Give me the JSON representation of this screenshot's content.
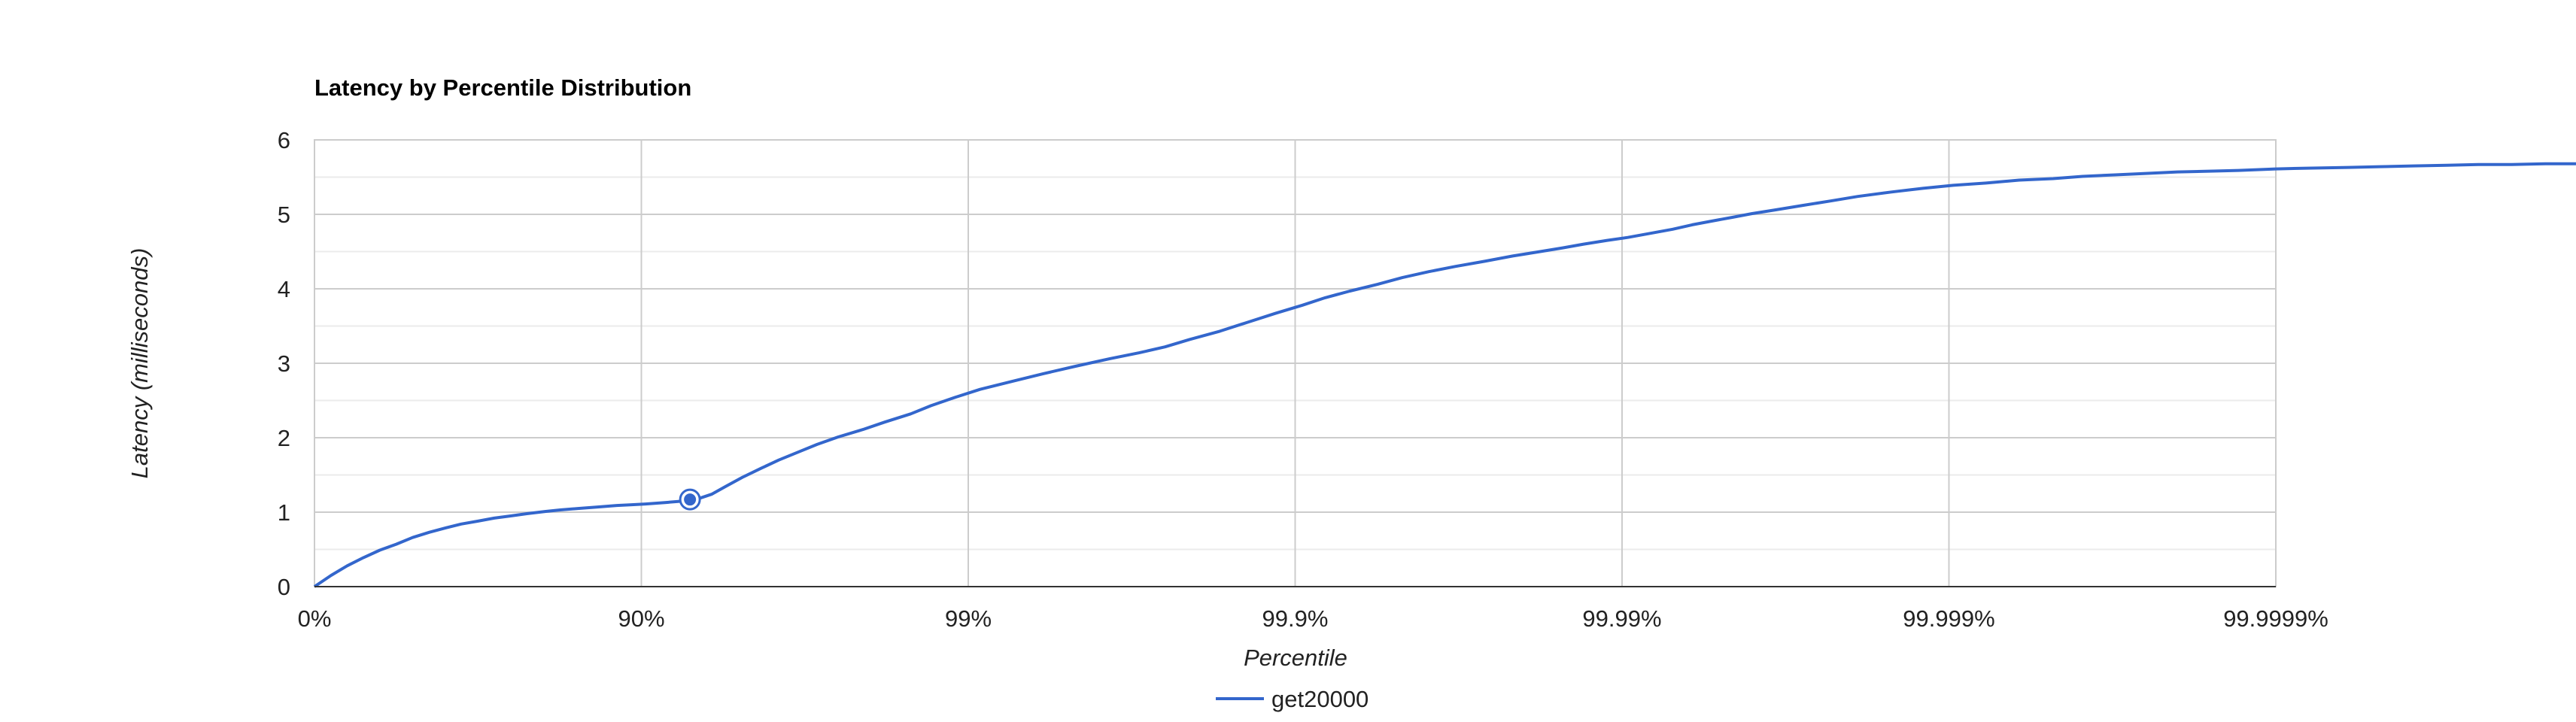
{
  "chart_data": {
    "type": "line",
    "title": "Latency by Percentile Distribution",
    "xlabel": "Percentile",
    "ylabel": "Latency (milliseconds)",
    "x_scale": "log-inverse-percentile",
    "x_ticks": [
      "0%",
      "90%",
      "99%",
      "99.9%",
      "99.99%",
      "99.999%",
      "99.9999%"
    ],
    "y_ticks": [
      "0",
      "1",
      "2",
      "3",
      "4",
      "5",
      "6"
    ],
    "ylim": [
      0,
      6
    ],
    "grid": true,
    "legend_position": "bottom",
    "highlighted_point": {
      "percentile": 92.9,
      "latency": 1.17
    },
    "series": [
      {
        "name": "get20000",
        "color": "#3366cc",
        "points": [
          [
            0,
            0.0
          ],
          [
            11.0,
            0.15
          ],
          [
            20.6,
            0.28
          ],
          [
            29.2,
            0.39
          ],
          [
            36.9,
            0.49
          ],
          [
            43.8,
            0.57
          ],
          [
            49.9,
            0.66
          ],
          [
            55.5,
            0.73
          ],
          [
            60.4,
            0.79
          ],
          [
            64.4,
            0.84
          ],
          [
            68.4,
            0.88
          ],
          [
            71.8,
            0.92
          ],
          [
            74.9,
            0.95
          ],
          [
            77.6,
            0.98
          ],
          [
            80.4,
            1.01
          ],
          [
            82.3,
            1.03
          ],
          [
            84.5,
            1.05
          ],
          [
            86.4,
            1.07
          ],
          [
            88.1,
            1.09
          ],
          [
            89.3,
            1.1
          ],
          [
            90.3,
            1.11
          ],
          [
            91.6,
            1.13
          ],
          [
            92.6,
            1.15
          ],
          [
            92.9,
            1.17
          ],
          [
            93.4,
            1.19
          ],
          [
            93.9,
            1.24
          ],
          [
            94.5,
            1.35
          ],
          [
            95.1,
            1.47
          ],
          [
            95.7,
            1.59
          ],
          [
            96.2,
            1.7
          ],
          [
            96.7,
            1.81
          ],
          [
            97.1,
            1.91
          ],
          [
            97.5,
            2.01
          ],
          [
            97.9,
            2.11
          ],
          [
            98.2,
            2.21
          ],
          [
            98.5,
            2.32
          ],
          [
            98.7,
            2.43
          ],
          [
            98.9,
            2.54
          ],
          [
            99.08,
            2.65
          ],
          [
            99.27,
            2.76
          ],
          [
            99.41,
            2.86
          ],
          [
            99.53,
            2.96
          ],
          [
            99.63,
            3.06
          ],
          [
            99.7,
            3.14
          ],
          [
            99.75,
            3.22
          ],
          [
            99.79,
            3.32
          ],
          [
            99.83,
            3.43
          ],
          [
            99.86,
            3.55
          ],
          [
            99.885,
            3.67
          ],
          [
            99.905,
            3.78
          ],
          [
            99.919,
            3.88
          ],
          [
            99.932,
            3.97
          ],
          [
            99.944,
            4.06
          ],
          [
            99.953,
            4.15
          ],
          [
            99.961,
            4.23
          ],
          [
            99.9676,
            4.3
          ],
          [
            99.9737,
            4.37
          ],
          [
            99.9784,
            4.44
          ],
          [
            99.9822,
            4.5
          ],
          [
            99.9848,
            4.55
          ],
          [
            99.9869,
            4.6
          ],
          [
            99.9889,
            4.65
          ],
          [
            99.9904,
            4.69
          ],
          [
            99.9917,
            4.74
          ],
          [
            99.993,
            4.8
          ],
          [
            99.9939,
            4.86
          ],
          [
            99.9947,
            4.91
          ],
          [
            99.9954,
            4.96
          ],
          [
            99.996,
            5.01
          ],
          [
            99.9966,
            5.06
          ],
          [
            99.9972,
            5.12
          ],
          [
            99.9977,
            5.18
          ],
          [
            99.9981,
            5.24
          ],
          [
            99.9985,
            5.3
          ],
          [
            99.9988,
            5.35
          ],
          [
            99.99903,
            5.39
          ],
          [
            99.99923,
            5.42
          ],
          [
            99.99939,
            5.46
          ],
          [
            99.99952,
            5.48
          ],
          [
            99.99961,
            5.51
          ],
          [
            99.99969,
            5.53
          ],
          [
            99.99975,
            5.55
          ],
          [
            99.9998,
            5.57
          ],
          [
            99.99984,
            5.58
          ],
          [
            99.99987,
            5.59
          ],
          [
            99.9999,
            5.61
          ],
          [
            99.99992,
            5.62
          ],
          [
            99.99994,
            5.63
          ],
          [
            99.999952,
            5.64
          ],
          [
            99.999962,
            5.65
          ],
          [
            99.99997,
            5.66
          ],
          [
            99.999976,
            5.67
          ],
          [
            99.999981,
            5.67
          ],
          [
            99.999985,
            5.68
          ],
          [
            99.999988,
            5.68
          ],
          [
            99.99999,
            5.69
          ],
          [
            99.999992,
            5.69
          ],
          [
            99.999994,
            5.7
          ],
          [
            99.9999946,
            5.7
          ]
        ]
      }
    ]
  }
}
